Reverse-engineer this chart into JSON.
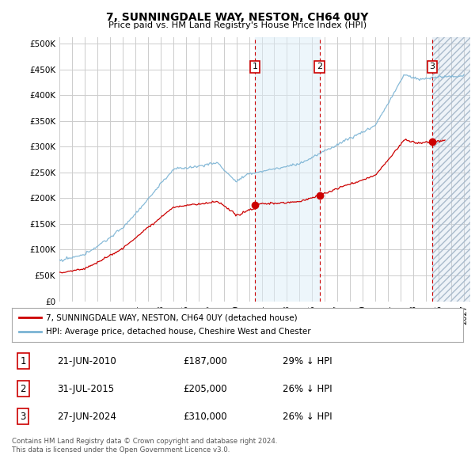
{
  "title": "7, SUNNINGDALE WAY, NESTON, CH64 0UY",
  "subtitle": "Price paid vs. HM Land Registry's House Price Index (HPI)",
  "yticks": [
    0,
    50000,
    100000,
    150000,
    200000,
    250000,
    300000,
    350000,
    400000,
    450000,
    500000
  ],
  "ylim": [
    0,
    512000
  ],
  "xlim_start": 1995.0,
  "xlim_end": 2027.5,
  "hpi_color": "#7ab3d4",
  "price_color": "#cc0000",
  "sale_marker_color": "#cc0000",
  "transaction_fill_color": "#ddeef8",
  "future_hatch_color": "#aabbcc",
  "transactions": [
    {
      "label": "1",
      "date_num": 2010.47,
      "price": 187000,
      "pct": "29% ↓ HPI",
      "date_str": "21-JUN-2010"
    },
    {
      "label": "2",
      "date_num": 2015.58,
      "price": 205000,
      "pct": "26% ↓ HPI",
      "date_str": "31-JUL-2015"
    },
    {
      "label": "3",
      "date_num": 2024.49,
      "price": 310000,
      "pct": "26% ↓ HPI",
      "date_str": "27-JUN-2024"
    }
  ],
  "legend_entries": [
    {
      "label": "7, SUNNINGDALE WAY, NESTON, CH64 0UY (detached house)",
      "color": "#cc0000"
    },
    {
      "label": "HPI: Average price, detached house, Cheshire West and Chester",
      "color": "#7ab3d4"
    }
  ],
  "footnote": "Contains HM Land Registry data © Crown copyright and database right 2024.\nThis data is licensed under the Open Government Licence v3.0.",
  "background_color": "#ffffff",
  "grid_color": "#cccccc"
}
